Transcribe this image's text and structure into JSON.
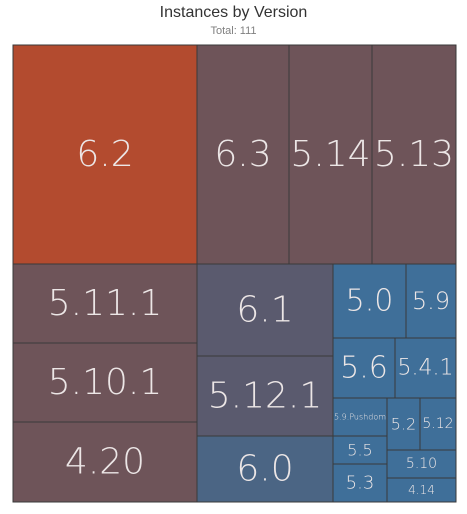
{
  "chart_data": {
    "type": "treemap",
    "title": "Instances by Version",
    "subtitle": "Total: 111",
    "colors": {
      "high": "#b34b2f",
      "mid": "#6e5459",
      "low": "#3f6f99",
      "border": "#3a3a3a",
      "label": "#ece6e6"
    },
    "cells": [
      {
        "label": "6.2",
        "color": "#b34b2f",
        "rel_size": 17.3
      },
      {
        "label": "6.3",
        "color": "#6e5459",
        "rel_size": 8.2
      },
      {
        "label": "5.14",
        "color": "#6e5459",
        "rel_size": 7.7
      },
      {
        "label": "5.13",
        "color": "#6e5459",
        "rel_size": 7.8
      },
      {
        "label": "5.11.1",
        "color": "#6e5459",
        "rel_size": 6.7
      },
      {
        "label": "5.10.1",
        "color": "#6e5459",
        "rel_size": 6.8
      },
      {
        "label": "4.20",
        "color": "#6e5459",
        "rel_size": 7.4
      },
      {
        "label": "6.1",
        "color": "#5a5a6e",
        "rel_size": 4.3
      },
      {
        "label": "5.12.1",
        "color": "#5a5a6e",
        "rel_size": 4.5
      },
      {
        "label": "6.0",
        "color": "#4b6584",
        "rel_size": 4.1
      },
      {
        "label": "5.0",
        "color": "#3f6f99",
        "rel_size": 1.7
      },
      {
        "label": "5.9",
        "color": "#3f6f99",
        "rel_size": 1.2
      },
      {
        "label": "5.6",
        "color": "#3f6f99",
        "rel_size": 1.2
      },
      {
        "label": "5.4.1",
        "color": "#3f6f99",
        "rel_size": 1.4
      },
      {
        "label": "5.9.Pushdom",
        "color": "#3f6f99",
        "rel_size": 1.0
      },
      {
        "label": "5.2",
        "color": "#3f6f99",
        "rel_size": 0.6
      },
      {
        "label": "5.12",
        "color": "#3f6f99",
        "rel_size": 0.6
      },
      {
        "label": "5.5",
        "color": "#3f6f99",
        "rel_size": 0.4
      },
      {
        "label": "5.10",
        "color": "#3f6f99",
        "rel_size": 0.6
      },
      {
        "label": "5.3",
        "color": "#3f6f99",
        "rel_size": 0.4
      },
      {
        "label": "4.14",
        "color": "#3f6f99",
        "rel_size": 0.5
      }
    ]
  }
}
